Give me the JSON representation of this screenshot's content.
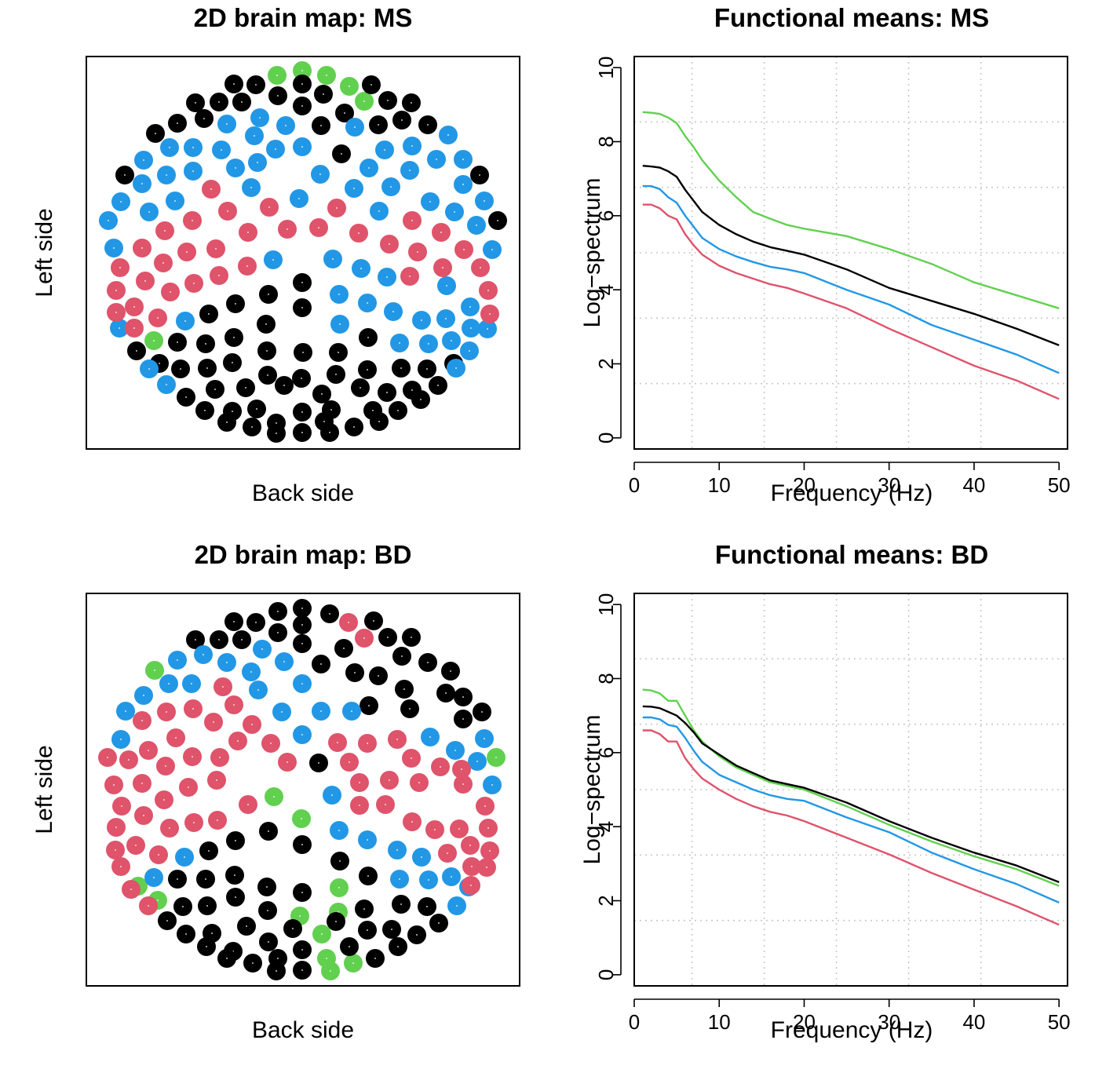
{
  "palette": {
    "cluster_black": "#000000",
    "cluster_blue": "#2297E6",
    "cluster_red": "#DF536B",
    "cluster_green": "#61D04F"
  },
  "chart_data": [
    {
      "id": "map_ms",
      "type": "scatter",
      "title": "2D brain map: MS",
      "xlabel": "Back side",
      "ylabel": "Left side",
      "legend": "none",
      "grid": false,
      "description_of_data": "EEG electrode positions colored by cluster membership (black, blue, red, green)",
      "clusters": [
        {
          "name": "black",
          "color": "#000000"
        },
        {
          "name": "blue",
          "color": "#2297E6"
        },
        {
          "name": "red",
          "color": "#DF536B"
        },
        {
          "name": "green",
          "color": "#61D04F"
        }
      ]
    },
    {
      "id": "means_ms",
      "type": "line",
      "title": "Functional means: MS",
      "xlabel": "Frequency (Hz)",
      "ylabel": "Log−spectrum",
      "xlim": [
        0,
        51
      ],
      "ylim": [
        -0.3,
        10.3
      ],
      "xticks": [
        0,
        10,
        20,
        30,
        40,
        50
      ],
      "yticks": [
        0,
        2,
        4,
        6,
        8,
        10
      ],
      "grid": true,
      "legend": "none",
      "x": [
        1,
        2,
        3,
        4,
        5,
        6,
        7,
        8,
        10,
        12,
        14,
        16,
        18,
        20,
        25,
        30,
        35,
        40,
        45,
        50
      ],
      "series": [
        {
          "name": "green",
          "color": "#61D04F",
          "values": [
            8.8,
            8.78,
            8.75,
            8.65,
            8.5,
            8.15,
            7.85,
            7.5,
            6.95,
            6.5,
            6.1,
            5.92,
            5.75,
            5.65,
            5.45,
            5.1,
            4.7,
            4.2,
            3.85,
            3.5
          ]
        },
        {
          "name": "black",
          "color": "#000000",
          "values": [
            7.35,
            7.33,
            7.3,
            7.2,
            7.05,
            6.7,
            6.4,
            6.1,
            5.75,
            5.5,
            5.3,
            5.15,
            5.05,
            4.95,
            4.55,
            4.05,
            3.7,
            3.35,
            2.95,
            2.5
          ]
        },
        {
          "name": "blue",
          "color": "#2297E6",
          "values": [
            6.8,
            6.8,
            6.72,
            6.5,
            6.35,
            6.0,
            5.7,
            5.4,
            5.1,
            4.9,
            4.75,
            4.62,
            4.55,
            4.45,
            4.0,
            3.6,
            3.05,
            2.65,
            2.25,
            1.75
          ]
        },
        {
          "name": "red",
          "color": "#DF536B",
          "values": [
            6.3,
            6.3,
            6.2,
            6.0,
            5.9,
            5.5,
            5.2,
            4.95,
            4.65,
            4.45,
            4.3,
            4.15,
            4.05,
            3.9,
            3.5,
            2.95,
            2.45,
            1.95,
            1.55,
            1.05
          ]
        }
      ]
    },
    {
      "id": "map_bd",
      "type": "scatter",
      "title": "2D brain map: BD",
      "xlabel": "Back side",
      "ylabel": "Left side",
      "legend": "none",
      "grid": false,
      "description_of_data": "EEG electrode positions colored by cluster membership (black, blue, red, green)",
      "clusters": [
        {
          "name": "black",
          "color": "#000000"
        },
        {
          "name": "blue",
          "color": "#2297E6"
        },
        {
          "name": "red",
          "color": "#DF536B"
        },
        {
          "name": "green",
          "color": "#61D04F"
        }
      ]
    },
    {
      "id": "means_bd",
      "type": "line",
      "title": "Functional means: BD",
      "xlabel": "Frequency (Hz)",
      "ylabel": "Log−spectrum",
      "xlim": [
        0,
        51
      ],
      "ylim": [
        -0.3,
        10.3
      ],
      "xticks": [
        0,
        10,
        20,
        30,
        40,
        50
      ],
      "yticks": [
        0,
        2,
        4,
        6,
        8,
        10
      ],
      "grid": true,
      "legend": "none",
      "x": [
        1,
        2,
        3,
        4,
        5,
        6,
        7,
        8,
        10,
        12,
        14,
        16,
        18,
        20,
        25,
        30,
        35,
        40,
        45,
        50
      ],
      "series": [
        {
          "name": "green",
          "color": "#61D04F",
          "values": [
            7.7,
            7.68,
            7.6,
            7.4,
            7.4,
            7.0,
            6.6,
            6.3,
            5.9,
            5.6,
            5.4,
            5.2,
            5.1,
            5.0,
            4.55,
            4.05,
            3.6,
            3.2,
            2.85,
            2.4
          ]
        },
        {
          "name": "black",
          "color": "#000000",
          "values": [
            7.25,
            7.24,
            7.2,
            7.1,
            7.0,
            6.8,
            6.55,
            6.25,
            5.95,
            5.65,
            5.45,
            5.25,
            5.15,
            5.05,
            4.65,
            4.15,
            3.7,
            3.3,
            2.95,
            2.5
          ]
        },
        {
          "name": "blue",
          "color": "#2297E6",
          "values": [
            6.95,
            6.95,
            6.9,
            6.75,
            6.7,
            6.4,
            6.05,
            5.75,
            5.4,
            5.2,
            5.0,
            4.85,
            4.75,
            4.7,
            4.25,
            3.85,
            3.3,
            2.85,
            2.45,
            1.95
          ]
        },
        {
          "name": "red",
          "color": "#DF536B",
          "values": [
            6.6,
            6.6,
            6.5,
            6.3,
            6.3,
            5.85,
            5.55,
            5.3,
            5.0,
            4.75,
            4.55,
            4.4,
            4.3,
            4.15,
            3.7,
            3.25,
            2.75,
            2.3,
            1.85,
            1.35
          ]
        }
      ]
    }
  ]
}
